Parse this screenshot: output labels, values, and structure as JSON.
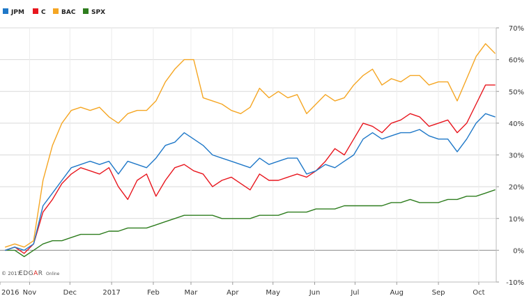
{
  "chart_data": {
    "type": "line",
    "x": [
      "2016-10-14",
      "2016-10-21",
      "2016-10-28",
      "2016-11-04",
      "2016-11-11",
      "2016-11-18",
      "2016-11-25",
      "2016-12-02",
      "2016-12-09",
      "2016-12-16",
      "2016-12-23",
      "2016-12-30",
      "2017-01-06",
      "2017-01-13",
      "2017-01-20",
      "2017-01-27",
      "2017-02-03",
      "2017-02-10",
      "2017-02-17",
      "2017-02-24",
      "2017-03-03",
      "2017-03-10",
      "2017-03-17",
      "2017-03-24",
      "2017-03-31",
      "2017-04-07",
      "2017-04-14",
      "2017-04-21",
      "2017-04-28",
      "2017-05-05",
      "2017-05-12",
      "2017-05-19",
      "2017-05-26",
      "2017-06-02",
      "2017-06-09",
      "2017-06-16",
      "2017-06-23",
      "2017-06-30",
      "2017-07-07",
      "2017-07-14",
      "2017-07-21",
      "2017-07-28",
      "2017-08-04",
      "2017-08-11",
      "2017-08-18",
      "2017-08-25",
      "2017-09-01",
      "2017-09-08",
      "2017-09-15",
      "2017-09-22",
      "2017-09-29",
      "2017-10-06",
      "2017-10-13"
    ],
    "series": [
      {
        "name": "JPM",
        "color": "#1f78c8",
        "values": [
          0,
          1,
          0,
          2,
          14,
          18,
          22,
          26,
          27,
          28,
          27,
          28,
          24,
          28,
          27,
          26,
          29,
          33,
          34,
          37,
          35,
          33,
          30,
          29,
          28,
          27,
          26,
          29,
          27,
          28,
          29,
          29,
          24,
          25,
          27,
          26,
          28,
          30,
          35,
          37,
          35,
          36,
          37,
          37,
          38,
          36,
          35,
          35,
          31,
          35,
          40,
          43,
          42
        ]
      },
      {
        "name": "C",
        "color": "#e8161e",
        "values": [
          0,
          1,
          -1,
          2,
          12,
          16,
          21,
          24,
          26,
          25,
          24,
          26,
          20,
          16,
          22,
          24,
          17,
          22,
          26,
          27,
          25,
          24,
          20,
          22,
          23,
          21,
          19,
          24,
          22,
          22,
          23,
          24,
          23,
          25,
          28,
          32,
          30,
          35,
          40,
          39,
          37,
          40,
          41,
          43,
          42,
          39,
          40,
          41,
          37,
          40,
          46,
          52,
          52
        ]
      },
      {
        "name": "BAC",
        "color": "#f5a623",
        "values": [
          1,
          2,
          1,
          3,
          22,
          33,
          40,
          44,
          45,
          44,
          45,
          42,
          40,
          43,
          44,
          44,
          47,
          53,
          57,
          60,
          60,
          48,
          47,
          46,
          44,
          43,
          45,
          51,
          48,
          50,
          48,
          49,
          43,
          46,
          49,
          47,
          48,
          52,
          55,
          57,
          52,
          54,
          53,
          55,
          55,
          52,
          53,
          53,
          47,
          54,
          61,
          65,
          62
        ]
      },
      {
        "name": "SPX",
        "color": "#2e7d1e",
        "values": [
          0,
          0,
          -2,
          0,
          2,
          3,
          3,
          4,
          5,
          5,
          5,
          6,
          6,
          7,
          7,
          7,
          8,
          9,
          10,
          11,
          11,
          11,
          11,
          10,
          10,
          10,
          10,
          11,
          11,
          11,
          12,
          12,
          12,
          13,
          13,
          13,
          14,
          14,
          14,
          14,
          14,
          15,
          15,
          16,
          15,
          15,
          15,
          16,
          16,
          17,
          17,
          18,
          19
        ]
      }
    ],
    "x_tick_labels": [
      {
        "x": "2016-10-10",
        "label": "2016"
      },
      {
        "x": "2016-11-01",
        "label": "Nov"
      },
      {
        "x": "2016-12-01",
        "label": "Dec"
      },
      {
        "x": "2017-01-01",
        "label": "2017"
      },
      {
        "x": "2017-02-01",
        "label": "Feb"
      },
      {
        "x": "2017-03-01",
        "label": "Mar"
      },
      {
        "x": "2017-04-01",
        "label": "Apr"
      },
      {
        "x": "2017-05-01",
        "label": "May"
      },
      {
        "x": "2017-06-01",
        "label": "Jun"
      },
      {
        "x": "2017-07-01",
        "label": "Jul"
      },
      {
        "x": "2017-08-01",
        "label": "Aug"
      },
      {
        "x": "2017-09-01",
        "label": "Sep"
      },
      {
        "x": "2017-10-01",
        "label": "Oct"
      }
    ],
    "y_ticks": [
      70,
      60,
      50,
      40,
      30,
      20,
      10,
      0,
      -10
    ],
    "y_tick_suffix": "%",
    "ylim": [
      -10,
      70
    ],
    "xlim": [
      "2016-10-10",
      "2017-10-14"
    ],
    "title": "",
    "xlabel": "",
    "ylabel": "",
    "grid": true,
    "zero_line": true,
    "legend_placement": "top-left"
  },
  "credit": {
    "prefix": "© 2017",
    "brand_edgar": "EDGAR",
    "brand_online": "Online"
  }
}
